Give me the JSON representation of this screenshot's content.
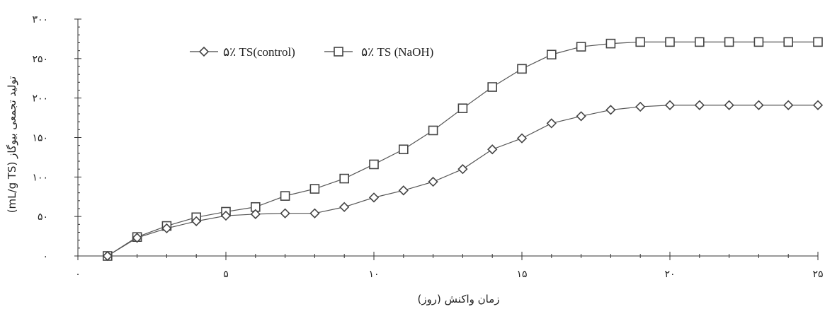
{
  "chart_data": {
    "type": "line",
    "title": "",
    "xlabel": "زمان واکنش (روز)",
    "ylabel": "تولید تجمعی بیوگاز (mL/g TS)",
    "xlim": [
      0,
      25
    ],
    "ylim": [
      0,
      300
    ],
    "x_ticks": [
      0,
      5,
      10,
      15,
      20,
      25
    ],
    "y_ticks": [
      0,
      50,
      100,
      150,
      200,
      250,
      300
    ],
    "x_tick_labels": [
      "۰",
      "۵",
      "۱۰",
      "۱۵",
      "۲۰",
      "۲۵"
    ],
    "y_tick_labels": [
      "۰",
      "۵۰",
      "۱۰۰",
      "۱۵۰",
      "۲۰۰",
      "۲۵۰",
      "۳۰۰"
    ],
    "grid": false,
    "legend_position": "top-left",
    "x": [
      1,
      2,
      3,
      4,
      5,
      6,
      7,
      8,
      9,
      10,
      11,
      12,
      13,
      14,
      15,
      16,
      17,
      18,
      19,
      20,
      21,
      22,
      23,
      24,
      25
    ],
    "series": [
      {
        "name": "۵٪ TS(control)",
        "marker": "diamond",
        "color": "#555555",
        "values": [
          0,
          23,
          35,
          44,
          51,
          53,
          54,
          54,
          62,
          74,
          83,
          94,
          110,
          135,
          149,
          168,
          177,
          185,
          189,
          191,
          191,
          191,
          191,
          191,
          191
        ]
      },
      {
        "name": "۵٪ TS (NaOH)",
        "marker": "square",
        "color": "#555555",
        "values": [
          0,
          24,
          38,
          49,
          56,
          62,
          76,
          85,
          98,
          116,
          135,
          159,
          187,
          214,
          237,
          255,
          265,
          269,
          271,
          271,
          271,
          271,
          271,
          271,
          271
        ]
      }
    ]
  }
}
